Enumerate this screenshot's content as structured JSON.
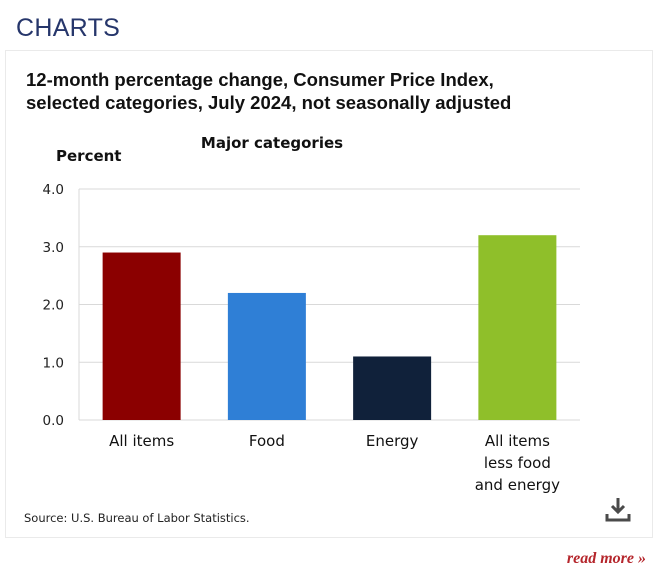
{
  "header": {
    "section_title": "CHARTS"
  },
  "chart_title_line1": "12-month percentage change, Consumer Price Index,",
  "chart_title_line2": "selected categories, July 2024, not seasonally adjusted",
  "source": "Source: U.S. Bureau of Labor Statistics.",
  "read_more": "read more »",
  "icons": {
    "download": "download-icon"
  },
  "colors": {
    "section_title": "#26366b",
    "read_more": "#b5262c"
  },
  "chart_data": {
    "type": "bar",
    "subtitle": "Major categories",
    "ylabel": "Percent",
    "xlabel": "",
    "ylim": [
      0,
      4
    ],
    "yticks": [
      "0.0",
      "1.0",
      "2.0",
      "3.0",
      "4.0"
    ],
    "grid": true,
    "categories": [
      [
        "All items"
      ],
      [
        "Food"
      ],
      [
        "Energy"
      ],
      [
        "All items",
        "less food",
        "and energy"
      ]
    ],
    "values": [
      2.9,
      2.2,
      1.1,
      3.2
    ],
    "bar_colors": [
      "#8b0000",
      "#2f7fd6",
      "#10213a",
      "#8fbf2a"
    ]
  }
}
